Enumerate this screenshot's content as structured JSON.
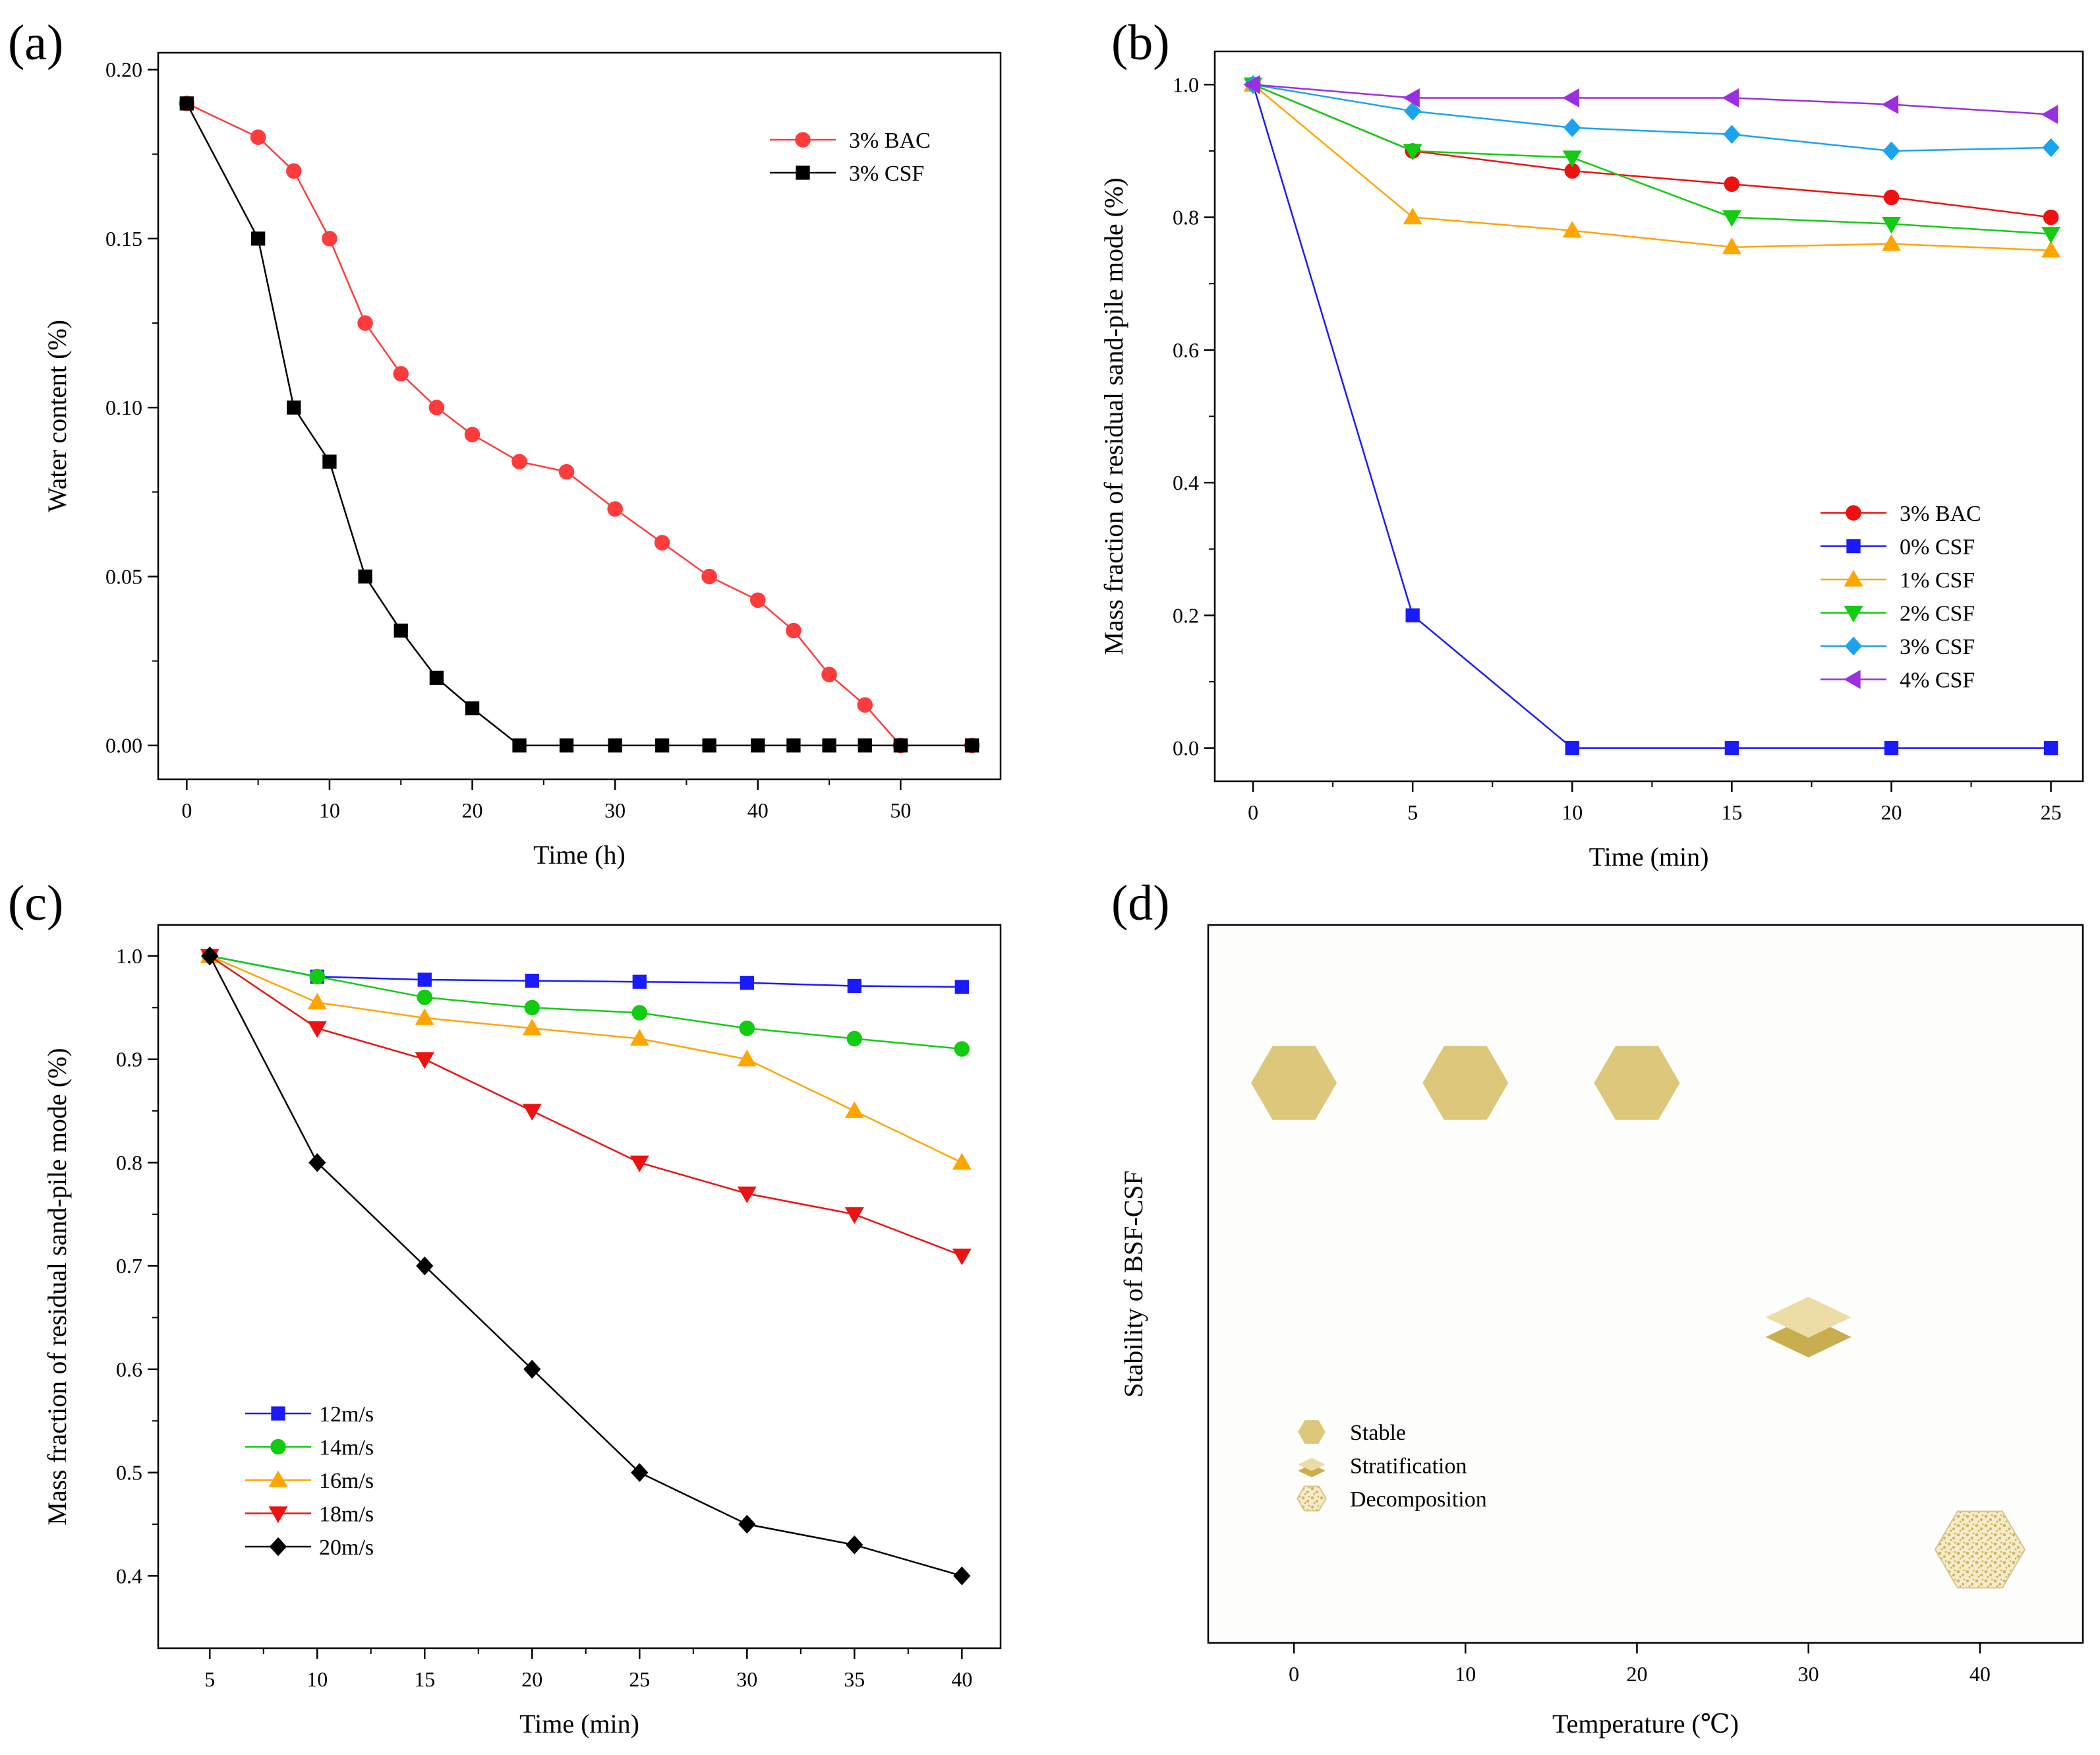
{
  "chart_data": [
    {
      "id": "a",
      "panel_label": "(a)",
      "type": "line",
      "xlabel": "Time (h)",
      "ylabel": "Water content (%)",
      "xlim": [
        -2,
        57
      ],
      "ylim": [
        -0.01,
        0.205
      ],
      "xticks": [
        0,
        10,
        20,
        30,
        40,
        50
      ],
      "yticks": [
        0.0,
        0.05,
        0.1,
        0.15,
        0.2
      ],
      "ytick_labels": [
        "0.00",
        "0.05",
        "0.10",
        "0.15",
        "0.20"
      ],
      "legend_position": "top-right",
      "series": [
        {
          "name": "3% BAC",
          "color": "#ff3b3b",
          "marker": "circle",
          "x": [
            0,
            5,
            7.5,
            10,
            12.5,
            15,
            17.5,
            20,
            23.3,
            26.6,
            30,
            33.3,
            36.6,
            40,
            42.5,
            45,
            47.5,
            50,
            55
          ],
          "y": [
            0.19,
            0.18,
            0.17,
            0.15,
            0.125,
            0.11,
            0.1,
            0.092,
            0.084,
            0.081,
            0.07,
            0.06,
            0.05,
            0.043,
            0.034,
            0.021,
            0.012,
            0.0,
            0.0
          ]
        },
        {
          "name": "3% CSF",
          "color": "#000000",
          "marker": "square",
          "x": [
            0,
            5,
            7.5,
            10,
            12.5,
            15,
            17.5,
            20,
            23.3,
            26.6,
            30,
            33.3,
            36.6,
            40,
            42.5,
            45,
            47.5,
            50,
            55
          ],
          "y": [
            0.19,
            0.15,
            0.1,
            0.084,
            0.05,
            0.034,
            0.02,
            0.011,
            0.0,
            0.0,
            0.0,
            0.0,
            0.0,
            0.0,
            0.0,
            0.0,
            0.0,
            0.0,
            0.0
          ]
        }
      ]
    },
    {
      "id": "b",
      "panel_label": "(b)",
      "type": "line",
      "xlabel": "Time (min)",
      "ylabel": "Mass fraction of residual sand-pile mode (%)",
      "xlim": [
        -1.2,
        26.0
      ],
      "ylim": [
        -0.05,
        1.05
      ],
      "xticks": [
        0,
        5,
        10,
        15,
        20,
        25
      ],
      "yticks": [
        0.0,
        0.2,
        0.4,
        0.6,
        0.8,
        1.0
      ],
      "ytick_labels": [
        "0.0",
        "0.2",
        "0.4",
        "0.6",
        "0.8",
        "1.0"
      ],
      "legend_position": "bottom-right",
      "series": [
        {
          "name": "3% BAC",
          "color": "#ee1111",
          "marker": "circle",
          "x": [
            0,
            5,
            10,
            15,
            20,
            25
          ],
          "y": [
            1.0,
            0.9,
            0.87,
            0.85,
            0.83,
            0.8
          ]
        },
        {
          "name": "0% CSF",
          "color": "#1a1aff",
          "marker": "square",
          "x": [
            0,
            5,
            10,
            15,
            20,
            25
          ],
          "y": [
            1.0,
            0.2,
            0.0,
            0.0,
            0.0,
            0.0
          ]
        },
        {
          "name": "1% CSF",
          "color": "#ffa500",
          "marker": "triangle-up",
          "x": [
            0,
            5,
            10,
            15,
            20,
            25
          ],
          "y": [
            1.0,
            0.8,
            0.78,
            0.755,
            0.76,
            0.75
          ]
        },
        {
          "name": "2% CSF",
          "color": "#11cc11",
          "marker": "triangle-down",
          "x": [
            0,
            5,
            10,
            15,
            20,
            25
          ],
          "y": [
            1.0,
            0.9,
            0.89,
            0.8,
            0.79,
            0.775
          ]
        },
        {
          "name": "3% CSF",
          "color": "#1aa3f0",
          "marker": "diamond",
          "x": [
            0,
            5,
            10,
            15,
            20,
            25
          ],
          "y": [
            1.0,
            0.96,
            0.935,
            0.925,
            0.9,
            0.905
          ]
        },
        {
          "name": "4% CSF",
          "color": "#9b2fe0",
          "marker": "triangle-left",
          "x": [
            0,
            5,
            10,
            15,
            20,
            25
          ],
          "y": [
            1.0,
            0.98,
            0.98,
            0.98,
            0.97,
            0.955
          ]
        }
      ]
    },
    {
      "id": "c",
      "panel_label": "(c)",
      "type": "line",
      "xlabel": "Time (min)",
      "ylabel": "Mass fraction of residual sand-pile mode (%)",
      "xlim": [
        2.6,
        41.8
      ],
      "ylim": [
        0.33,
        1.03
      ],
      "xticks": [
        5,
        10,
        15,
        20,
        25,
        30,
        35,
        40
      ],
      "yticks": [
        0.4,
        0.5,
        0.6,
        0.7,
        0.8,
        0.9,
        1.0
      ],
      "ytick_labels": [
        "0.4",
        "0.5",
        "0.6",
        "0.7",
        "0.8",
        "0.9",
        "1.0"
      ],
      "legend_position": "bottom-left",
      "series": [
        {
          "name": "12m/s",
          "color": "#1a1aff",
          "marker": "square",
          "x": [
            5,
            10,
            15,
            20,
            25,
            30,
            35,
            40
          ],
          "y": [
            1.0,
            0.98,
            0.977,
            0.976,
            0.975,
            0.974,
            0.971,
            0.97
          ]
        },
        {
          "name": "14m/s",
          "color": "#11cc11",
          "marker": "circle",
          "x": [
            5,
            10,
            15,
            20,
            25,
            30,
            35,
            40
          ],
          "y": [
            1.0,
            0.98,
            0.96,
            0.95,
            0.945,
            0.93,
            0.92,
            0.91
          ]
        },
        {
          "name": "16m/s",
          "color": "#ffa500",
          "marker": "triangle-up",
          "x": [
            5,
            10,
            15,
            20,
            25,
            30,
            35,
            40
          ],
          "y": [
            1.0,
            0.955,
            0.94,
            0.93,
            0.92,
            0.9,
            0.85,
            0.8
          ]
        },
        {
          "name": "18m/s",
          "color": "#ee1111",
          "marker": "triangle-down",
          "x": [
            5,
            10,
            15,
            20,
            25,
            30,
            35,
            40
          ],
          "y": [
            1.0,
            0.93,
            0.9,
            0.85,
            0.8,
            0.77,
            0.75,
            0.71
          ]
        },
        {
          "name": "20m/s",
          "color": "#000000",
          "marker": "diamond",
          "x": [
            5,
            10,
            15,
            20,
            25,
            30,
            35,
            40
          ],
          "y": [
            1.0,
            0.8,
            0.7,
            0.6,
            0.5,
            0.45,
            0.43,
            0.4
          ]
        }
      ]
    },
    {
      "id": "d",
      "panel_label": "(d)",
      "type": "scatter",
      "xlabel": "Temperature (℃)",
      "ylabel": "Stability of BSF-CSF",
      "xlim": [
        -5,
        46
      ],
      "ylim": [
        0,
        1
      ],
      "xticks": [
        0,
        10,
        20,
        30,
        40
      ],
      "legend_position": "bottom-left",
      "colors": {
        "stable": "#dcc77a",
        "stratification_top": "#ecdca6",
        "stratification_bottom": "#c8ae4f",
        "decomposition": "#d9c27a"
      },
      "categories": [
        "Stable",
        "Stratification",
        "Decomposition"
      ],
      "points": [
        {
          "x": 0,
          "state": "Stable",
          "level": 0.78
        },
        {
          "x": 10,
          "state": "Stable",
          "level": 0.78
        },
        {
          "x": 20,
          "state": "Stable",
          "level": 0.78
        },
        {
          "x": 30,
          "state": "Stratification",
          "level": 0.45
        },
        {
          "x": 40,
          "state": "Decomposition",
          "level": 0.13
        }
      ]
    }
  ]
}
